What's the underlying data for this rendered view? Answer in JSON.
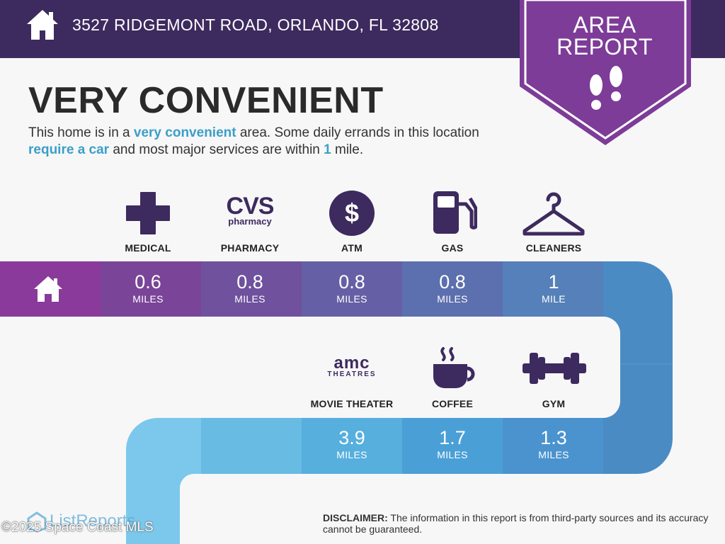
{
  "header": {
    "address": "3527 RIDGEMONT ROAD, ORLANDO, FL 32808",
    "home_icon": "house-icon"
  },
  "badge": {
    "line1": "AREA",
    "line2": "REPORT",
    "icon": "footprints-icon"
  },
  "headline": "VERY CONVENIENT",
  "subtitle": {
    "part1": "This home is in a ",
    "hl1": "very convenient",
    "part2": " area. Some daily errands in this location ",
    "hl2": "require a car",
    "part3": " and most major services are within ",
    "hl3": "1",
    "part4": " mile."
  },
  "services_row1": [
    {
      "label": "MEDICAL",
      "value": "0.6",
      "unit": "MILES",
      "icon": "medical-cross-icon"
    },
    {
      "label": "PHARMACY",
      "value": "0.8",
      "unit": "MILES",
      "icon": "cvs-pharmacy-logo-icon",
      "logo_line1": "CVS",
      "logo_line2": "pharmacy"
    },
    {
      "label": "ATM",
      "value": "0.8",
      "unit": "MILES",
      "icon": "dollar-coin-icon"
    },
    {
      "label": "GAS",
      "value": "0.8",
      "unit": "MILES",
      "icon": "gas-pump-icon"
    },
    {
      "label": "CLEANERS",
      "value": "1",
      "unit": "MILE",
      "icon": "hanger-icon"
    }
  ],
  "services_row2": [
    {
      "label": "MOVIE THEATER",
      "value": "3.9",
      "unit": "MILES",
      "icon": "amc-theatres-logo-icon",
      "logo_line1": "amc",
      "logo_line2": "THEATRES"
    },
    {
      "label": "COFFEE",
      "value": "1.7",
      "unit": "MILES",
      "icon": "coffee-cup-icon"
    },
    {
      "label": "GYM",
      "value": "1.3",
      "unit": "MILES",
      "icon": "dumbbell-icon"
    }
  ],
  "colors": {
    "header": "#3d2a5e",
    "badge": "#7d3c98",
    "accent_text": "#3b9fc7"
  },
  "footer": {
    "watermark": "©2025 Space Coast MLS",
    "brand": "ListReports",
    "disclaimer_label": "DISCLAIMER:",
    "disclaimer_text": " The information in this report is from third-party sources and its accuracy cannot be guaranteed."
  }
}
